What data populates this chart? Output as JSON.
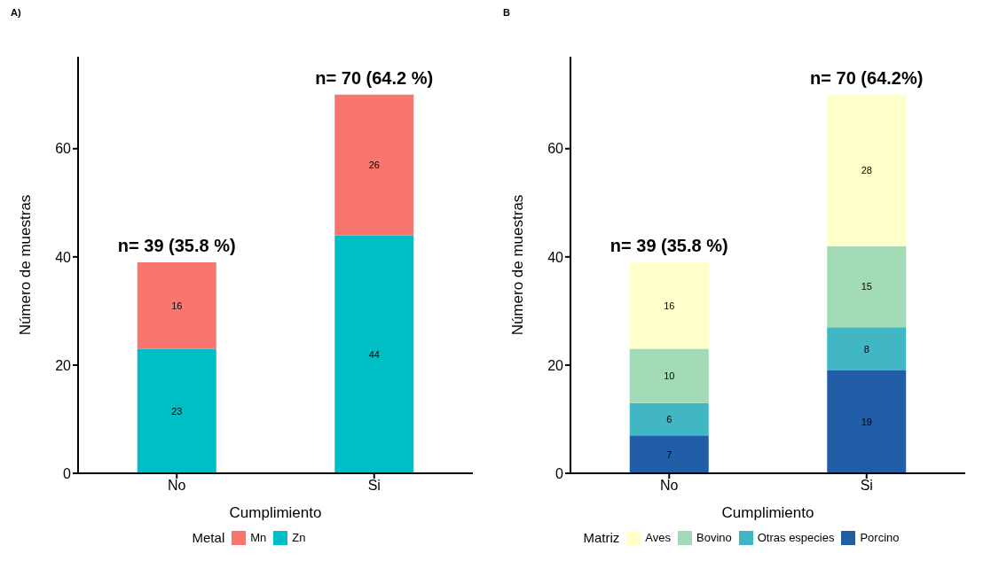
{
  "chart_data": [
    {
      "type": "bar",
      "title": "A)",
      "xlabel": "Cumplimiento",
      "ylabel": "Número de muestras",
      "legend_title": "Metal",
      "categories": [
        "No",
        "Si"
      ],
      "stacked": true,
      "ylim": [
        0,
        77
      ],
      "yticks": [
        0,
        20,
        40,
        60
      ],
      "grid": false,
      "legend": "bottom",
      "data_labels": true,
      "series": [
        {
          "name": "Zn",
          "color": "#00bfc4",
          "values": [
            23,
            44
          ]
        },
        {
          "name": "Mn",
          "color": "#f8766d",
          "values": [
            16,
            26
          ]
        }
      ],
      "annotations": [
        {
          "text": "n= 39 (35.8 %)",
          "x": "No",
          "y": 39
        },
        {
          "text": "n= 70 (64.2 %)",
          "x": "Si",
          "y": 70
        }
      ]
    },
    {
      "type": "bar",
      "title": "B",
      "xlabel": "Cumplimiento",
      "ylabel": "Número de muestras",
      "legend_title": "Matriz",
      "categories": [
        "No",
        "Si"
      ],
      "stacked": true,
      "ylim": [
        0,
        77
      ],
      "yticks": [
        0,
        20,
        40,
        60
      ],
      "grid": false,
      "legend": "bottom",
      "data_labels": true,
      "series": [
        {
          "name": "Porcino",
          "color": "#225ea8",
          "values": [
            7,
            19
          ]
        },
        {
          "name": "Otras especies",
          "color": "#41b6c4",
          "values": [
            6,
            8
          ]
        },
        {
          "name": "Bovino",
          "color": "#a1dab4",
          "values": [
            10,
            15
          ]
        },
        {
          "name": "Aves",
          "color": "#ffffcc",
          "values": [
            16,
            28
          ]
        }
      ],
      "annotations": [
        {
          "text": "n= 39 (35.8 %)",
          "x": "No",
          "y": 39
        },
        {
          "text": "n= 70 (64.2%)",
          "x": "Si",
          "y": 70
        }
      ]
    }
  ]
}
